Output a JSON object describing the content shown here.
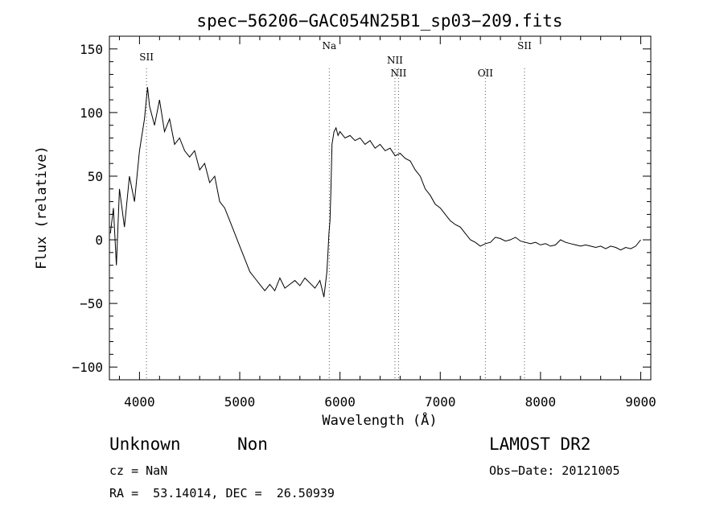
{
  "chart_data": {
    "type": "line",
    "title": "spec−56206−GAC054N25B1_sp03−209.fits",
    "xlabel": "Wavelength (Å)",
    "ylabel": "Flux (relative)",
    "xlim": [
      3700,
      9100
    ],
    "ylim": [
      -110,
      160
    ],
    "xticks": [
      4000,
      5000,
      6000,
      7000,
      8000,
      9000
    ],
    "xtick_labels": [
      "4000",
      "5000",
      "6000",
      "7000",
      "8000",
      "9000"
    ],
    "yticks": [
      150,
      100,
      50,
      0,
      -50,
      -100
    ],
    "ytick_labels": [
      "150",
      "100",
      "50",
      "0",
      "−50",
      "−100"
    ],
    "grid": false,
    "line_color": "#000000",
    "series": [
      {
        "x": [
          3710,
          3740,
          3770,
          3800,
          3850,
          3900,
          3950,
          4000,
          4050,
          4080,
          4100,
          4150,
          4200,
          4250,
          4300,
          4350,
          4400,
          4450,
          4500,
          4550,
          4600,
          4650,
          4700,
          4750,
          4800,
          4850,
          4900,
          4950,
          5000,
          5050,
          5100,
          5150,
          5200,
          5250,
          5300,
          5350,
          5400,
          5450,
          5500,
          5550,
          5600,
          5650,
          5700,
          5750,
          5800,
          5840,
          5870,
          5880,
          5890,
          5900,
          5910,
          5920,
          5940,
          5960,
          5980,
          6000,
          6050,
          6100,
          6150,
          6200,
          6250,
          6300,
          6350,
          6400,
          6450,
          6500,
          6550,
          6600,
          6650,
          6700,
          6750,
          6800,
          6850,
          6900,
          6950,
          7000,
          7050,
          7100,
          7150,
          7200,
          7250,
          7300,
          7350,
          7400,
          7450,
          7500,
          7550,
          7600,
          7650,
          7700,
          7750,
          7800,
          7850,
          7900,
          7950,
          8000,
          8050,
          8100,
          8150,
          8200,
          8250,
          8300,
          8350,
          8400,
          8450,
          8500,
          8550,
          8600,
          8650,
          8700,
          8750,
          8800,
          8850,
          8900,
          8950,
          9000
        ],
        "y": [
          5,
          25,
          -20,
          40,
          10,
          50,
          30,
          70,
          95,
          120,
          105,
          90,
          110,
          85,
          95,
          75,
          80,
          70,
          65,
          70,
          55,
          60,
          45,
          50,
          30,
          25,
          15,
          5,
          -5,
          -15,
          -25,
          -30,
          -35,
          -40,
          -35,
          -40,
          -30,
          -38,
          -35,
          -32,
          -36,
          -30,
          -34,
          -38,
          -32,
          -45,
          -25,
          -10,
          5,
          15,
          40,
          75,
          85,
          88,
          82,
          85,
          80,
          82,
          78,
          80,
          75,
          78,
          72,
          75,
          70,
          72,
          66,
          68,
          64,
          62,
          55,
          50,
          40,
          35,
          28,
          25,
          20,
          15,
          12,
          10,
          5,
          0,
          -2,
          -5,
          -3,
          -2,
          2,
          1,
          -1,
          0,
          2,
          -1,
          -2,
          -3,
          -2,
          -4,
          -3,
          -5,
          -4,
          0,
          -2,
          -3,
          -4,
          -5,
          -4,
          -5,
          -6,
          -5,
          -7,
          -5,
          -6,
          -8,
          -6,
          -7,
          -5,
          0
        ]
      }
    ],
    "line_markers": [
      {
        "label": "SII",
        "x": 4070
      },
      {
        "label": "Na",
        "x": 5893
      },
      {
        "label": "NII",
        "x": 6548
      },
      {
        "label": "NII",
        "x": 6584
      },
      {
        "label": "OII",
        "x": 7450
      },
      {
        "label": "SII",
        "x": 7840
      }
    ]
  },
  "info": {
    "class": "Unknown",
    "subclass": "Non",
    "survey": "LAMOST DR2",
    "cz": "cz = NaN",
    "obs_date": "Obs−Date: 20121005",
    "coords": "RA =  53.14014, DEC =  26.50939"
  }
}
